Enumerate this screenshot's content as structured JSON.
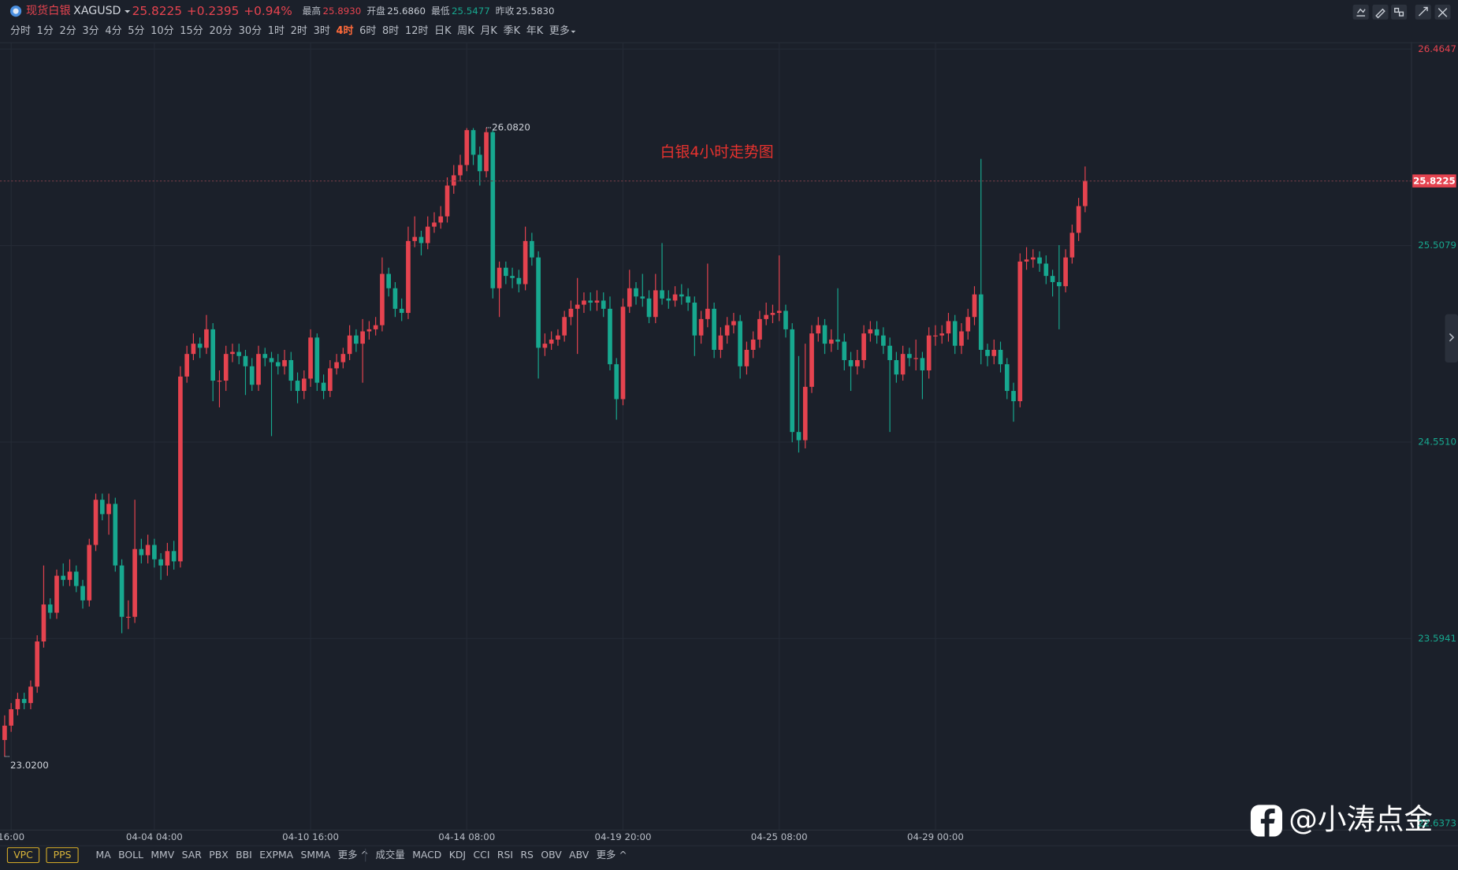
{
  "header": {
    "name": "现货白银",
    "code": "XAGUSD",
    "price": "25.8225",
    "change": "+0.2395",
    "change_pct": "+0.94%",
    "stats": [
      {
        "label": "最高",
        "value": "25.8930",
        "color": "#e5434f"
      },
      {
        "label": "开盘",
        "value": "25.6860",
        "color": "#c9ced6"
      },
      {
        "label": "最低",
        "value": "25.5477",
        "color": "#17a88f"
      },
      {
        "label": "昨收",
        "value": "25.5830",
        "color": "#c9ced6"
      }
    ]
  },
  "timeframes": [
    "分时",
    "1分",
    "2分",
    "3分",
    "4分",
    "5分",
    "10分",
    "15分",
    "20分",
    "30分",
    "1时",
    "2时",
    "3时",
    "4时",
    "6时",
    "8时",
    "12时",
    "日K",
    "周K",
    "月K",
    "季K",
    "年K",
    "更多"
  ],
  "active_timeframe": 13,
  "boxed_indicators": [
    "VPC",
    "PPS"
  ],
  "main_indicators": [
    "MA",
    "BOLL",
    "MMV",
    "SAR",
    "PBX",
    "BBI",
    "EXPMA",
    "SMMA",
    "更多 ^"
  ],
  "sub_indicators": [
    "成交量",
    "MACD",
    "KDJ",
    "CCI",
    "RSI",
    "RS",
    "OBV",
    "ABV",
    "更多 ^"
  ],
  "watermark": "@小涛点金",
  "chart_data": {
    "type": "candlestick",
    "annotation": "白银4小时走势图",
    "categories": [
      null,
      "16:00",
      null,
      null,
      null,
      null,
      null,
      null,
      null,
      null,
      null,
      null,
      null,
      null,
      null,
      null,
      null,
      null,
      null,
      null,
      null,
      null,
      null,
      "04-04 04:00",
      null,
      null,
      null,
      null,
      null,
      null,
      null,
      null,
      null,
      null,
      null,
      null,
      null,
      null,
      null,
      null,
      null,
      null,
      null,
      null,
      null,
      null,
      null,
      "04-10 16:00",
      null,
      null,
      null,
      null,
      null,
      null,
      null,
      null,
      null,
      null,
      null,
      null,
      null,
      null,
      null,
      null,
      null,
      null,
      null,
      null,
      null,
      null,
      null,
      "04-14 08:00",
      null,
      null,
      null,
      null,
      null,
      null,
      null,
      null,
      null,
      null,
      null,
      null,
      null,
      null,
      null,
      null,
      null,
      null,
      null,
      null,
      null,
      null,
      null,
      "04-19 20:00",
      null,
      null,
      null,
      null,
      null,
      null,
      null,
      null,
      null,
      null,
      null,
      null,
      null,
      null,
      null,
      null,
      null,
      null,
      null,
      null,
      null,
      null,
      null,
      "04-25 08:00",
      null,
      null,
      null,
      null,
      null,
      null,
      null,
      null,
      null,
      null,
      null,
      null,
      null,
      null,
      null,
      null,
      null,
      null,
      null,
      null,
      null,
      null,
      null,
      "04-29 00:00",
      null,
      null,
      null,
      null,
      null,
      null,
      null,
      null,
      null,
      null,
      null,
      null,
      null,
      null,
      null,
      null,
      null,
      null,
      null,
      null,
      null,
      null,
      null
    ],
    "open": [
      23.1,
      23.17,
      23.25,
      23.3,
      23.28,
      23.36,
      23.58,
      23.76,
      23.72,
      23.9,
      23.88,
      23.92,
      23.85,
      23.78,
      24.05,
      24.27,
      24.2,
      24.25,
      23.95,
      23.7,
      23.7,
      24.03,
      24.0,
      24.05,
      23.98,
      23.95,
      24.02,
      23.97,
      24.87,
      24.98,
      25.03,
      25.01,
      25.1,
      24.85,
      24.85,
      24.98,
      24.99,
      24.97,
      24.92,
      24.83,
      24.98,
      24.96,
      24.94,
      24.92,
      24.95,
      24.85,
      24.8,
      24.86,
      25.06,
      24.84,
      24.8,
      24.91,
      24.94,
      24.98,
      25.07,
      25.03,
      25.09,
      25.1,
      25.12,
      25.37,
      25.3,
      25.2,
      25.18,
      25.53,
      25.55,
      25.52,
      25.6,
      25.62,
      25.65,
      25.8,
      25.85,
      25.9,
      26.07,
      25.95,
      25.87,
      26.06,
      25.3,
      25.4,
      25.36,
      25.35,
      25.32,
      25.53,
      25.45,
      25.01,
      25.03,
      25.05,
      25.07,
      25.16,
      25.2,
      25.22,
      25.24,
      25.23,
      25.24,
      25.2,
      24.93,
      24.76,
      25.21,
      25.3,
      25.26,
      25.25,
      25.16,
      25.29,
      25.25,
      25.24,
      25.27,
      25.26,
      25.23,
      25.07,
      25.15,
      25.2,
      25.0,
      25.07,
      25.12,
      25.14,
      24.92,
      25.0,
      25.05,
      25.15,
      25.17,
      25.18,
      25.19,
      25.1,
      24.6,
      24.56,
      24.82,
      25.08,
      25.12,
      25.03,
      25.05,
      25.04,
      24.95,
      24.92,
      24.95,
      25.08,
      25.1,
      25.07,
      25.02,
      24.95,
      24.88,
      24.98,
      24.96,
      24.96,
      24.9,
      25.07,
      25.07,
      25.08,
      25.14,
      25.02,
      25.09,
      25.16,
      25.27,
      25.0,
      24.97,
      25.0,
      24.93,
      24.8,
      24.75,
      25.43,
      25.44,
      25.45,
      25.42,
      25.36,
      25.33,
      25.31,
      25.45,
      25.57,
      25.7
    ],
    "high": [
      23.22,
      23.28,
      23.33,
      23.33,
      23.39,
      23.61,
      23.95,
      23.79,
      23.93,
      23.96,
      23.98,
      23.95,
      23.88,
      24.08,
      24.3,
      24.3,
      24.3,
      24.28,
      23.98,
      23.78,
      24.27,
      24.08,
      24.1,
      24.08,
      24.01,
      24.06,
      24.07,
      24.92,
      25.02,
      25.08,
      25.06,
      25.17,
      25.13,
      24.9,
      25.02,
      25.03,
      25.03,
      25.0,
      24.96,
      25.02,
      25.01,
      24.99,
      24.98,
      25.0,
      24.99,
      24.89,
      24.9,
      25.1,
      25.08,
      24.88,
      24.95,
      24.98,
      25.01,
      25.12,
      25.1,
      25.15,
      25.14,
      25.16,
      25.45,
      25.4,
      25.33,
      25.25,
      25.6,
      25.65,
      25.58,
      25.65,
      25.67,
      25.7,
      25.84,
      25.9,
      25.95,
      26.08,
      26.08,
      25.99,
      26.082,
      26.07,
      25.43,
      25.43,
      25.4,
      25.39,
      25.6,
      25.57,
      25.48,
      25.08,
      25.09,
      25.1,
      25.19,
      25.24,
      25.35,
      25.28,
      25.28,
      25.29,
      25.28,
      25.26,
      24.96,
      25.25,
      25.39,
      25.33,
      25.37,
      25.29,
      25.37,
      25.52,
      25.29,
      25.31,
      25.32,
      25.3,
      25.26,
      25.19,
      25.42,
      25.23,
      25.11,
      25.16,
      25.18,
      25.17,
      25.04,
      25.09,
      25.19,
      25.23,
      25.22,
      25.46,
      25.22,
      25.13,
      24.97,
      25.03,
      25.12,
      25.16,
      25.15,
      25.1,
      25.3,
      25.08,
      24.99,
      25.0,
      25.12,
      25.14,
      25.14,
      25.11,
      25.06,
      24.99,
      25.02,
      25.01,
      25.05,
      24.99,
      25.11,
      25.12,
      25.12,
      25.18,
      25.17,
      25.13,
      25.2,
      25.31,
      25.93,
      25.03,
      25.05,
      25.04,
      24.96,
      24.84,
      25.47,
      25.5,
      25.49,
      25.48,
      25.46,
      25.39,
      25.51,
      25.49,
      25.61,
      25.74,
      25.893
    ],
    "low": [
      23.02,
      23.14,
      23.22,
      23.25,
      23.25,
      23.33,
      23.55,
      23.69,
      23.69,
      23.85,
      23.85,
      23.82,
      23.74,
      23.75,
      24.02,
      24.17,
      24.1,
      23.92,
      23.62,
      23.64,
      23.67,
      23.96,
      23.96,
      23.94,
      23.88,
      23.9,
      23.93,
      23.94,
      24.84,
      24.95,
      24.96,
      24.98,
      24.75,
      24.72,
      24.8,
      24.94,
      24.93,
      24.78,
      24.8,
      24.8,
      24.92,
      24.58,
      24.88,
      24.88,
      24.8,
      24.74,
      24.76,
      24.82,
      24.8,
      24.76,
      24.77,
      24.88,
      24.91,
      24.95,
      24.99,
      24.84,
      25.05,
      25.07,
      25.09,
      25.26,
      25.16,
      25.14,
      25.15,
      25.5,
      25.46,
      25.49,
      25.57,
      25.59,
      25.62,
      25.76,
      25.82,
      25.87,
      25.9,
      25.8,
      25.84,
      25.25,
      25.16,
      25.32,
      25.3,
      25.28,
      25.29,
      25.41,
      24.86,
      24.97,
      25.0,
      25.02,
      25.04,
      25.12,
      24.98,
      25.18,
      25.19,
      25.19,
      25.16,
      24.9,
      24.66,
      24.73,
      25.18,
      25.22,
      25.21,
      25.13,
      25.13,
      25.22,
      25.2,
      25.21,
      25.22,
      25.19,
      24.97,
      25.03,
      25.11,
      24.96,
      24.96,
      25.03,
      25.08,
      24.86,
      24.88,
      24.96,
      25.01,
      25.12,
      25.13,
      25.14,
      25.06,
      24.55,
      24.5,
      24.52,
      24.79,
      25.04,
      24.98,
      24.99,
      25.0,
      24.9,
      24.8,
      24.88,
      24.91,
      25.04,
      25.03,
      24.98,
      24.6,
      24.84,
      24.85,
      24.92,
      24.9,
      24.76,
      24.86,
      25.02,
      25.03,
      25.04,
      24.98,
      24.98,
      25.05,
      25.12,
      24.93,
      24.92,
      24.93,
      24.89,
      24.76,
      24.65,
      24.72,
      25.39,
      25.4,
      25.38,
      25.32,
      25.26,
      25.1,
      25.28,
      25.42,
      25.53,
      25.67
    ],
    "close": [
      23.17,
      23.25,
      23.3,
      23.28,
      23.36,
      23.58,
      23.76,
      23.72,
      23.9,
      23.88,
      23.92,
      23.85,
      23.78,
      24.05,
      24.27,
      24.2,
      24.25,
      23.95,
      23.7,
      23.7,
      24.03,
      24.0,
      24.05,
      23.98,
      23.95,
      24.02,
      23.97,
      24.87,
      24.98,
      25.03,
      25.01,
      25.1,
      24.85,
      24.85,
      24.98,
      24.99,
      24.97,
      24.92,
      24.83,
      24.98,
      24.96,
      24.94,
      24.92,
      24.95,
      24.85,
      24.8,
      24.86,
      25.06,
      24.84,
      24.8,
      24.91,
      24.94,
      24.98,
      25.07,
      25.03,
      25.09,
      25.1,
      25.12,
      25.37,
      25.3,
      25.2,
      25.18,
      25.53,
      25.55,
      25.52,
      25.6,
      25.62,
      25.65,
      25.8,
      25.85,
      25.9,
      26.07,
      25.95,
      25.87,
      26.06,
      25.3,
      25.4,
      25.36,
      25.35,
      25.32,
      25.53,
      25.45,
      25.01,
      25.03,
      25.05,
      25.07,
      25.16,
      25.2,
      25.22,
      25.24,
      25.23,
      25.24,
      25.2,
      24.93,
      24.76,
      25.21,
      25.3,
      25.26,
      25.25,
      25.16,
      25.29,
      25.25,
      25.24,
      25.27,
      25.26,
      25.23,
      25.07,
      25.15,
      25.2,
      25.0,
      25.07,
      25.12,
      25.14,
      24.92,
      25.0,
      25.05,
      25.15,
      25.17,
      25.18,
      25.19,
      25.1,
      24.6,
      24.56,
      24.82,
      25.08,
      25.12,
      25.03,
      25.05,
      25.04,
      24.95,
      24.92,
      24.95,
      25.08,
      25.1,
      25.07,
      25.02,
      24.95,
      24.88,
      24.98,
      24.96,
      24.96,
      24.9,
      25.07,
      25.07,
      25.08,
      25.14,
      25.02,
      25.09,
      25.16,
      25.27,
      25.0,
      24.97,
      25.0,
      24.93,
      24.8,
      24.75,
      25.43,
      25.44,
      25.45,
      25.42,
      25.36,
      25.33,
      25.31,
      25.45,
      25.57,
      25.7,
      25.8225
    ],
    "up_color": "#e5434f",
    "down_color": "#17a88f",
    "ylim": [
      22.63,
      26.5
    ],
    "yticks": [
      26.4647,
      25.5079,
      {
        "value": 24.551,
        "label": "24.5510"
      },
      23.5941,
      22.6373
    ],
    "grid": true,
    "last_price": 25.8225,
    "extremes": [
      {
        "value": 26.082,
        "label": "26.0820"
      },
      {
        "value": 23.02,
        "label": "23.0200"
      }
    ]
  }
}
